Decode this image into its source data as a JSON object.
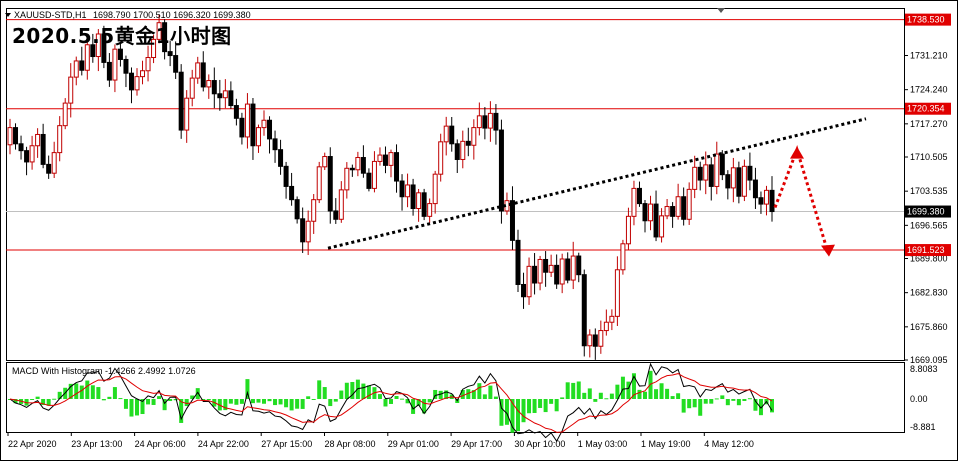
{
  "title_overlay": "2020.5.5黄金1小时图",
  "header": {
    "symbol": "XAUUSD-STD,H1",
    "ohlc": "1698.790 1700.510 1696.320 1699.380"
  },
  "macd_label": "MACD With Histogram -1.4266 2.4992 1.0726",
  "chart_data": {
    "type": "candlestick",
    "ylim": [
      1669.095,
      1740.9
    ],
    "price_ticks": [
      "1731.210",
      "1724.240",
      "1717.270",
      "1710.505",
      "1703.535",
      "1696.565",
      "1689.800",
      "1682.830",
      "1675.860",
      "1669.095"
    ],
    "x_ticks": [
      "22 Apr 2020",
      "23 Apr 13:00",
      "24 Apr 06:00",
      "24 Apr 22:00",
      "27 Apr 15:00",
      "28 Apr 08:00",
      "29 Apr 01:00",
      "29 Apr 17:00",
      "30 Apr 10:00",
      "1 May 03:00",
      "1 May 19:00",
      "4 May 12:00"
    ],
    "horizontal_lines": [
      {
        "label": "1738.530",
        "value": 1738.53
      },
      {
        "label": "1720.354",
        "value": 1720.354
      },
      {
        "label": "1691.523",
        "value": 1691.523
      }
    ],
    "current_price": {
      "label": "1699.380",
      "value": 1699.38
    },
    "trendline": {
      "from": [
        0.0,
        1691.9
      ],
      "to": [
        1.0,
        1718.3
      ]
    },
    "closes": [
      1716.5,
      1713.2,
      1711.8,
      1709.5,
      1712.8,
      1715.1,
      1709.0,
      1707.2,
      1711.4,
      1716.9,
      1721.5,
      1726.8,
      1730.1,
      1728.2,
      1733.4,
      1731.0,
      1735.6,
      1729.8,
      1726.2,
      1732.5,
      1730.4,
      1727.6,
      1724.2,
      1726.9,
      1728.1,
      1730.8,
      1734.5,
      1737.9,
      1732.0,
      1731.2,
      1727.8,
      1716.0,
      1722.5,
      1726.6,
      1729.7,
      1724.8,
      1726.1,
      1723.4,
      1722.6,
      1724.0,
      1721.0,
      1718.4,
      1714.6,
      1721.3,
      1712.8,
      1716.5,
      1718.0,
      1714.2,
      1712.0,
      1708.6,
      1704.5,
      1701.8,
      1697.9,
      1693.2,
      1697.4,
      1701.8,
      1708.5,
      1710.6,
      1699.5,
      1697.8,
      1703.8,
      1708.2,
      1707.9,
      1710.4,
      1707.2,
      1704.1,
      1709.6,
      1710.9,
      1708.8,
      1711.4,
      1705.6,
      1702.4,
      1704.8,
      1700.0,
      1703.2,
      1698.4,
      1701.0,
      1707.0,
      1713.6,
      1716.8,
      1713.2,
      1710.0,
      1713.7,
      1712.9,
      1716.5,
      1718.9,
      1716.4,
      1719.4,
      1716.0,
      1699.5,
      1701.6,
      1693.5,
      1684.5,
      1682.0,
      1688.2,
      1684.8,
      1689.6,
      1687.0,
      1688.4,
      1684.6,
      1689.7,
      1685.4,
      1690.3,
      1686.5,
      1672.0,
      1674.2,
      1671.9,
      1675.1,
      1676.8,
      1678.0,
      1687.5,
      1692.8,
      1698.4,
      1704.1,
      1701.0,
      1697.5,
      1700.9,
      1694.2,
      1698.5,
      1700.4,
      1698.4,
      1702.4,
      1697.8,
      1703.9,
      1708.4,
      1705.8,
      1708.9,
      1704.5,
      1711.1,
      1706.9,
      1704.2,
      1708.3,
      1702.5,
      1708.6,
      1705.8,
      1702.2,
      1700.9,
      1703.7,
      1699.38
    ]
  }
}
